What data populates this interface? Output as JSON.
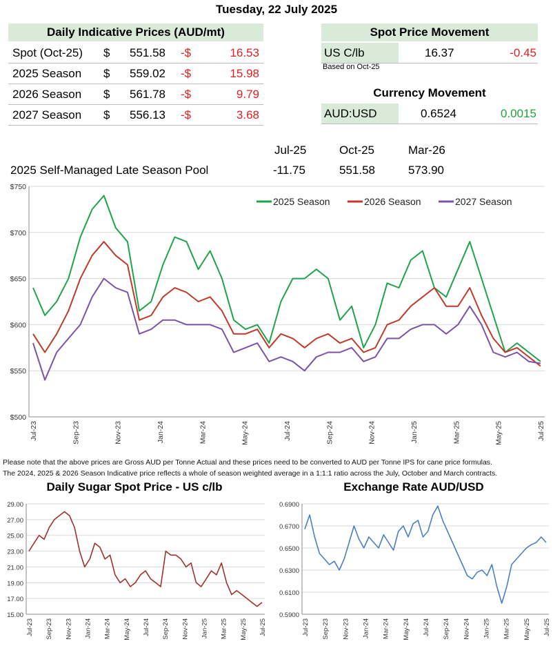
{
  "header": {
    "date": "Tuesday, 22 July 2025"
  },
  "indicative": {
    "title": "Daily Indicative Prices (AUD/mt)",
    "rows": [
      {
        "label": "Spot (Oct-25)",
        "cur": "$",
        "price": "551.58",
        "sign": "-$",
        "change": "16.53"
      },
      {
        "label": "2025 Season",
        "cur": "$",
        "price": "559.02",
        "sign": "-$",
        "change": "15.98"
      },
      {
        "label": "2026 Season",
        "cur": "$",
        "price": "561.78",
        "sign": "-$",
        "change": "9.79"
      },
      {
        "label": "2027 Season",
        "cur": "$",
        "price": "556.13",
        "sign": "-$",
        "change": "3.68"
      }
    ]
  },
  "spot": {
    "title": "Spot Price Movement",
    "label": "US C/lb",
    "value": "16.37",
    "change": "-0.45",
    "note": "Based on Oct-25"
  },
  "currency": {
    "title": "Currency Movement",
    "label": "AUD:USD",
    "value": "0.6524",
    "change": "0.0015"
  },
  "pool": {
    "label": "2025 Self-Managed Late Season Pool",
    "headers": [
      "Jul-25",
      "Oct-25",
      "Mar-26"
    ],
    "values": [
      "-11.75",
      "551.58",
      "573.90"
    ]
  },
  "notes": [
    "Please note that the above prices are Gross AUD per Tonne Actual and these prices need to be converted to AUD per Tonne IPS for cane price formulas.",
    "The 2024, 2025 & 2026 Season Indicative price reflects a whole of season weighted average in a 1:1:1 ratio across the July, October and March contracts."
  ],
  "chart_data": [
    {
      "type": "line",
      "title": "",
      "ylim": [
        500,
        750
      ],
      "yticks": [
        "$500",
        "$550",
        "$600",
        "$650",
        "$700",
        "$750"
      ],
      "xticks": [
        "Jul-23",
        "Sep-23",
        "Nov-23",
        "Jan-24",
        "Mar-24",
        "May-24",
        "Jul-24",
        "Sep-24",
        "Nov-24",
        "Jan-25",
        "Mar-25",
        "May-25",
        "Jul-25"
      ],
      "legend": "top-right",
      "colors": [
        "#1fa34a",
        "#c0392b",
        "#7b52a8"
      ],
      "series": [
        {
          "name": "2025 Season",
          "values": [
            640,
            610,
            625,
            650,
            695,
            725,
            740,
            705,
            690,
            615,
            625,
            665,
            695,
            690,
            660,
            680,
            650,
            605,
            595,
            600,
            580,
            625,
            650,
            650,
            660,
            650,
            605,
            620,
            575,
            600,
            645,
            640,
            670,
            680,
            640,
            630,
            660,
            690,
            650,
            610,
            570,
            580,
            570,
            560
          ]
        },
        {
          "name": "2026 Season",
          "values": [
            590,
            570,
            590,
            615,
            650,
            675,
            690,
            675,
            665,
            605,
            610,
            630,
            640,
            635,
            625,
            630,
            615,
            590,
            590,
            595,
            575,
            590,
            585,
            575,
            585,
            590,
            580,
            585,
            570,
            575,
            600,
            605,
            620,
            630,
            640,
            620,
            620,
            640,
            610,
            585,
            570,
            575,
            565,
            555
          ]
        },
        {
          "name": "2027 Season",
          "values": [
            580,
            540,
            570,
            585,
            600,
            630,
            650,
            640,
            635,
            590,
            595,
            605,
            605,
            600,
            600,
            600,
            595,
            570,
            575,
            580,
            560,
            565,
            560,
            550,
            565,
            570,
            570,
            575,
            560,
            565,
            585,
            585,
            595,
            600,
            600,
            590,
            600,
            620,
            600,
            570,
            565,
            570,
            560,
            558
          ]
        }
      ]
    },
    {
      "type": "line",
      "title": "Daily Sugar Spot Price - US c/lb",
      "ylim": [
        15,
        29
      ],
      "yticks": [
        "15.00",
        "17.00",
        "19.00",
        "21.00",
        "23.00",
        "25.00",
        "27.00",
        "29.00"
      ],
      "xticks": [
        "Jul-23",
        "Sep-23",
        "Nov-23",
        "Jan-24",
        "Mar-24",
        "May-24",
        "Jul-24",
        "Sep-24",
        "Nov-24",
        "Jan-25",
        "Mar-25",
        "May-25",
        "Jul-25"
      ],
      "colors": [
        "#a0302a"
      ],
      "series": [
        {
          "values": [
            23,
            24,
            25,
            24.5,
            26,
            27,
            27.5,
            28,
            27.5,
            26,
            23,
            21,
            22,
            24,
            23.5,
            22,
            22.5,
            20,
            19,
            19.5,
            18.5,
            19,
            20,
            20.5,
            19.5,
            19,
            18.5,
            23,
            22.5,
            22.5,
            22,
            21,
            21.5,
            19,
            18.5,
            19.5,
            20.5,
            20,
            21.5,
            19,
            17.5,
            18,
            17.5,
            17,
            16.5,
            16,
            16.5
          ]
        }
      ]
    },
    {
      "type": "line",
      "title": "Exchange Rate AUD/USD",
      "ylim": [
        0.59,
        0.69
      ],
      "yticks": [
        "0.5900",
        "0.6100",
        "0.6300",
        "0.6500",
        "0.6700",
        "0.6900"
      ],
      "xticks": [
        "Jul-23",
        "Sep-23",
        "Nov-23",
        "Jan-24",
        "Mar-24",
        "May-24",
        "Jul-24",
        "Sep-24",
        "Nov-24",
        "Jan-25",
        "Mar-25",
        "May-25",
        "Jul-25"
      ],
      "colors": [
        "#4a7fc4"
      ],
      "series": [
        {
          "values": [
            0.667,
            0.68,
            0.66,
            0.645,
            0.64,
            0.635,
            0.638,
            0.63,
            0.64,
            0.655,
            0.67,
            0.658,
            0.65,
            0.66,
            0.655,
            0.65,
            0.662,
            0.655,
            0.648,
            0.665,
            0.67,
            0.66,
            0.672,
            0.675,
            0.66,
            0.665,
            0.68,
            0.688,
            0.675,
            0.665,
            0.655,
            0.645,
            0.635,
            0.625,
            0.622,
            0.628,
            0.63,
            0.625,
            0.635,
            0.615,
            0.6,
            0.615,
            0.635,
            0.64,
            0.645,
            0.65,
            0.653,
            0.655,
            0.66,
            0.655
          ]
        }
      ]
    }
  ]
}
